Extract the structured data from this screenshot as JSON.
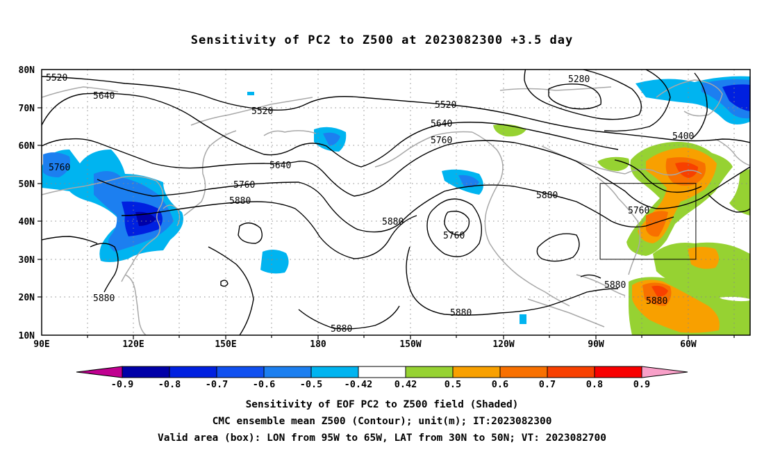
{
  "title": "Sensitivity of PC2 to Z500 at 2023082300 +3.5 day",
  "map": {
    "lat_labels": [
      "80N",
      "70N",
      "60N",
      "50N",
      "40N",
      "30N",
      "20N",
      "10N"
    ],
    "lon_labels": [
      "90E",
      "120E",
      "150E",
      "180",
      "150W",
      "120W",
      "90W",
      "60W"
    ],
    "contour_labels": [
      {
        "id": "5520-nw",
        "text": "5520"
      },
      {
        "id": "5640-nw",
        "text": "5640"
      },
      {
        "id": "5520-pac",
        "text": "5520"
      },
      {
        "id": "5760-w",
        "text": "5760"
      },
      {
        "id": "5640-mid",
        "text": "5640"
      },
      {
        "id": "5760-mid",
        "text": "5760"
      },
      {
        "id": "5880-mid",
        "text": "5880"
      },
      {
        "id": "5880-pac",
        "text": "5880"
      },
      {
        "id": "5520-ne",
        "text": "5520"
      },
      {
        "id": "5640-ne",
        "text": "5640"
      },
      {
        "id": "5760-ne",
        "text": "5760"
      },
      {
        "id": "5280",
        "text": "5280"
      },
      {
        "id": "5400",
        "text": "5400"
      },
      {
        "id": "5760-low",
        "text": "5760"
      },
      {
        "id": "5880-sw",
        "text": "5880"
      },
      {
        "id": "5880-s",
        "text": "5880"
      },
      {
        "id": "5880-se",
        "text": "5880"
      },
      {
        "id": "5880-e",
        "text": "5880"
      },
      {
        "id": "5760-box",
        "text": "5760"
      },
      {
        "id": "5880-gulf",
        "text": "5880"
      },
      {
        "id": "5880-atl",
        "text": "5880"
      }
    ],
    "valid_box": {
      "lon_west": -95,
      "lon_east": -65,
      "lat_south": 30,
      "lat_north": 50
    }
  },
  "colorbar": {
    "labels": [
      "-0.9",
      "-0.8",
      "-0.7",
      "-0.6",
      "-0.5",
      "-0.42",
      "0.42",
      "0.5",
      "0.6",
      "0.7",
      "0.8",
      "0.9"
    ],
    "colors": [
      "#c00090",
      "#0000a8",
      "#0020e0",
      "#1050f0",
      "#1c7ff0",
      "#00b4f0",
      "#ffffff",
      "#96d232",
      "#f8a000",
      "#f87000",
      "#f84000",
      "#f80000",
      "#f8a0c8"
    ]
  },
  "captions": [
    "Sensitivity of EOF PC2 to Z500 field (Shaded)",
    "CMC ensemble mean Z500 (Contour); unit(m); IT:2023082300",
    "Valid area (box): LON from 95W to 65W, LAT from 30N to 50N; VT: 2023082700"
  ]
}
